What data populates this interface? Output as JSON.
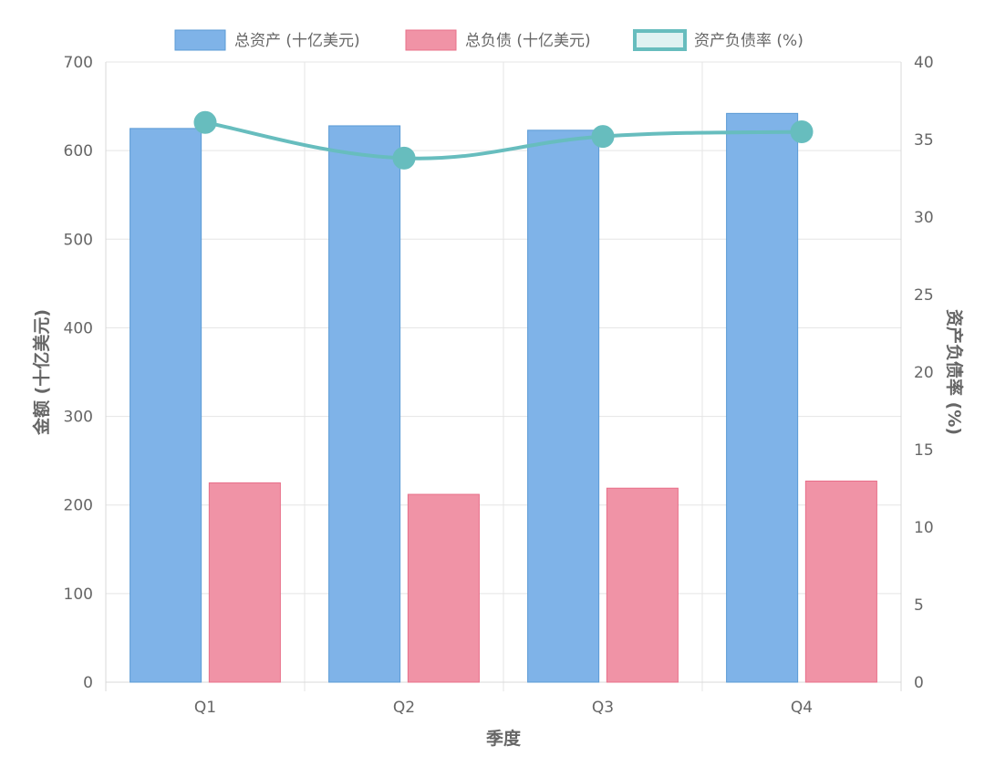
{
  "chart_data": {
    "type": "bar",
    "categories": [
      "Q1",
      "Q2",
      "Q3",
      "Q4"
    ],
    "xlabel": "季度",
    "ylabel_left": "金额 (十亿美元)",
    "ylabel_right": "资产负债率 (%)",
    "ylim_left": [
      0,
      700
    ],
    "ylim_right": [
      0,
      40
    ],
    "yticks_left": [
      "0",
      "100",
      "200",
      "300",
      "400",
      "500",
      "600",
      "700"
    ],
    "yticks_right": [
      "0",
      "5",
      "10",
      "15",
      "20",
      "25",
      "30",
      "35",
      "40"
    ],
    "grid": true,
    "legend_position": "top",
    "series": [
      {
        "name": "总资产 (十亿美元)",
        "kind": "bar",
        "axis": "left",
        "values": [
          625,
          628,
          623,
          642
        ],
        "color": "#7fb3e8",
        "border": "#5b9bd5"
      },
      {
        "name": "总负债 (十亿美元)",
        "kind": "bar",
        "axis": "left",
        "values": [
          225,
          212,
          219,
          227
        ],
        "color": "#f093a6",
        "border": "#e8708a"
      },
      {
        "name": "资产负债率 (%)",
        "kind": "line",
        "axis": "right",
        "values": [
          36.1,
          33.8,
          35.2,
          35.5
        ],
        "color": "#67bdbe",
        "fill": "#dff2f2"
      }
    ]
  }
}
